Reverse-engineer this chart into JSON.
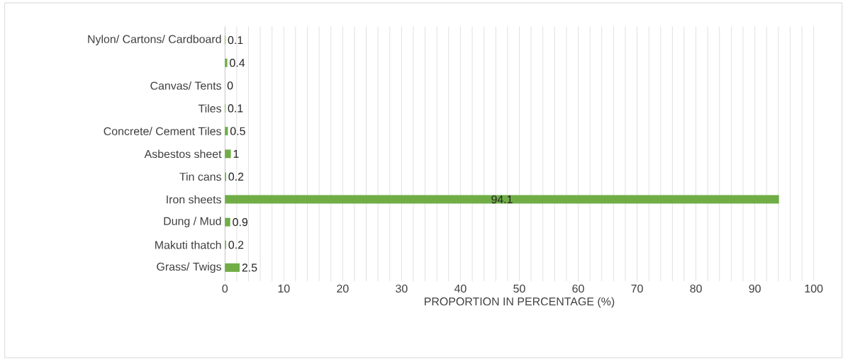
{
  "chart_data": {
    "type": "bar",
    "orientation": "horizontal",
    "xlabel": "PROPORTION IN PERCENTAGE (%)",
    "categories": [
      "Nylon/ Cartons/ Cardboard",
      null,
      "Canvas/ Tents",
      "Tiles",
      "Concrete/ Cement  Tiles",
      "Asbestos sheet",
      "Tin cans",
      "Iron sheets",
      "Dung / Mud",
      "Makuti thatch",
      "Grass/ Twigs"
    ],
    "values": [
      0.1,
      0.4,
      0,
      0.1,
      0.5,
      1,
      0.2,
      94.1,
      0.9,
      0.2,
      2.5
    ],
    "color": "#70ad47",
    "data_labels": true,
    "grid": "x",
    "xlim": [
      0,
      100
    ],
    "xticks": [
      0,
      {
        "value": 2,
        "label": null
      },
      {
        "value": 4,
        "label": null
      },
      {
        "value": 6,
        "label": null
      },
      {
        "value": 8,
        "label": null
      },
      10,
      {
        "value": 12,
        "label": null
      },
      {
        "value": 14,
        "label": null
      },
      {
        "value": 16,
        "label": null
      },
      {
        "value": 18,
        "label": null
      },
      20,
      {
        "value": 22,
        "label": null
      },
      {
        "value": 24,
        "label": null
      },
      {
        "value": 26,
        "label": null
      },
      {
        "value": 28,
        "label": null
      },
      30,
      {
        "value": 32,
        "label": null
      },
      {
        "value": 34,
        "label": null
      },
      {
        "value": 36,
        "label": null
      },
      {
        "value": 38,
        "label": null
      },
      40,
      {
        "value": 42,
        "label": null
      },
      {
        "value": 44,
        "label": null
      },
      {
        "value": 46,
        "label": null
      },
      {
        "value": 48,
        "label": null
      },
      50,
      {
        "value": 52,
        "label": null
      },
      {
        "value": 54,
        "label": null
      },
      {
        "value": 56,
        "label": null
      },
      {
        "value": 58,
        "label": null
      },
      60,
      {
        "value": 62,
        "label": null
      },
      {
        "value": 64,
        "label": null
      },
      {
        "value": 66,
        "label": null
      },
      {
        "value": 68,
        "label": null
      },
      70,
      {
        "value": 72,
        "label": null
      },
      {
        "value": 74,
        "label": null
      },
      {
        "value": 76,
        "label": null
      },
      {
        "value": 78,
        "label": null
      },
      80,
      {
        "value": 82,
        "label": null
      },
      {
        "value": 84,
        "label": null
      },
      {
        "value": 86,
        "label": null
      },
      {
        "value": 88,
        "label": null
      },
      90,
      {
        "value": 92,
        "label": null
      },
      {
        "value": 94,
        "label": null
      },
      {
        "value": 96,
        "label": null
      },
      {
        "value": 98,
        "label": null
      },
      100
    ]
  }
}
